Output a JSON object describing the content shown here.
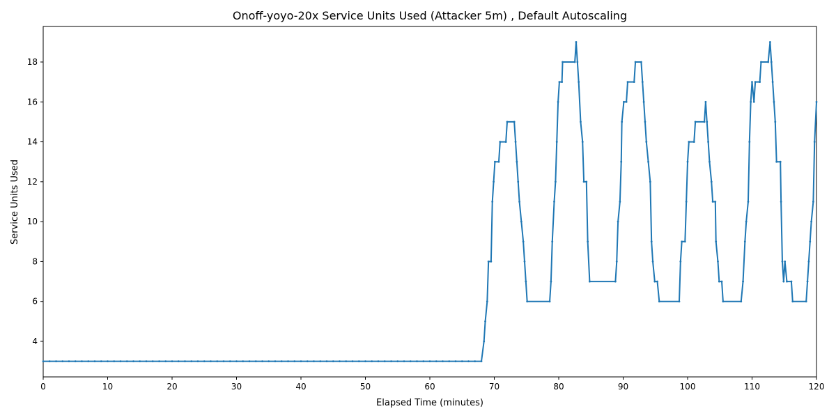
{
  "chart_data": {
    "type": "line",
    "title": "Onoff-yoyo-20x Service Units Used (Attacker 5m) , Default Autoscaling",
    "x_label": "Elapsed Time (minutes)",
    "y_label": "Service Units Used",
    "color": "#1f77b4",
    "xlim": [
      0,
      120
    ],
    "ylim": [
      2.22,
      19.78
    ],
    "xticks": [
      0,
      10,
      20,
      30,
      40,
      50,
      60,
      70,
      80,
      90,
      100,
      110,
      120
    ],
    "yticks": [
      4,
      6,
      8,
      10,
      12,
      14,
      16,
      18
    ],
    "x": [
      0,
      1,
      2,
      3,
      4,
      5,
      6,
      7,
      8,
      9,
      10,
      11,
      12,
      13,
      14,
      15,
      16,
      17,
      18,
      19,
      20,
      21,
      22,
      23,
      24,
      25,
      26,
      27,
      28,
      29,
      30,
      31,
      32,
      33,
      34,
      35,
      36,
      37,
      38,
      39,
      40,
      41,
      42,
      43,
      44,
      45,
      46,
      47,
      48,
      49,
      50,
      51,
      52,
      53,
      54,
      55,
      56,
      57,
      58,
      59,
      60,
      61,
      62,
      63,
      64,
      65,
      66,
      67,
      68,
      68.4,
      68.6,
      68.9,
      69.1,
      69.5,
      69.7,
      69.9,
      70.1,
      70.7,
      70.9,
      71.8,
      72.0,
      73.1,
      73.3,
      73.5,
      73.7,
      73.9,
      74.2,
      74.5,
      74.7,
      74.9,
      75.1,
      78.6,
      78.8,
      79.0,
      79.3,
      79.5,
      79.7,
      79.9,
      80.1,
      80.5,
      80.6,
      82.5,
      82.7,
      82.9,
      83.1,
      83.4,
      83.7,
      83.9,
      84.3,
      84.5,
      84.8,
      88.8,
      89.0,
      89.2,
      89.5,
      89.7,
      89.8,
      90.1,
      90.5,
      90.7,
      91.7,
      91.9,
      92.8,
      93.0,
      93.2,
      93.4,
      93.6,
      93.9,
      94.2,
      94.4,
      94.6,
      94.9,
      95.3,
      95.6,
      98.7,
      98.9,
      99.1,
      99.6,
      99.8,
      100.0,
      100.2,
      101.0,
      101.2,
      102.6,
      102.8,
      103.0,
      103.2,
      103.4,
      103.7,
      103.9,
      104.3,
      104.4,
      104.7,
      104.9,
      105.3,
      105.5,
      108.3,
      108.6,
      108.9,
      109.1,
      109.4,
      109.6,
      109.8,
      110.0,
      110.3,
      110.5,
      111.2,
      111.4,
      112.5,
      112.8,
      113.0,
      113.2,
      113.4,
      113.6,
      113.8,
      114.4,
      114.5,
      114.7,
      114.9,
      115.1,
      115.4,
      116.1,
      116.3,
      118.4,
      118.6,
      118.8,
      119.0,
      119.2,
      119.5,
      119.7,
      120.0
    ],
    "values": [
      3,
      3,
      3,
      3,
      3,
      3,
      3,
      3,
      3,
      3,
      3,
      3,
      3,
      3,
      3,
      3,
      3,
      3,
      3,
      3,
      3,
      3,
      3,
      3,
      3,
      3,
      3,
      3,
      3,
      3,
      3,
      3,
      3,
      3,
      3,
      3,
      3,
      3,
      3,
      3,
      3,
      3,
      3,
      3,
      3,
      3,
      3,
      3,
      3,
      3,
      3,
      3,
      3,
      3,
      3,
      3,
      3,
      3,
      3,
      3,
      3,
      3,
      3,
      3,
      3,
      3,
      3,
      3,
      3,
      4,
      5,
      6,
      8,
      8,
      11,
      12,
      13,
      13,
      14,
      14,
      15,
      15,
      14,
      13,
      12,
      11,
      10,
      9,
      8,
      7,
      6,
      6,
      7,
      9,
      11,
      12,
      14,
      16,
      17,
      17,
      18,
      18,
      19,
      18,
      17,
      15,
      14,
      12,
      12,
      9,
      7,
      7,
      8,
      10,
      11,
      13,
      15,
      16,
      16,
      17,
      17,
      18,
      18,
      17,
      16,
      15,
      14,
      13,
      12,
      9,
      8,
      7,
      7,
      6,
      6,
      8,
      9,
      9,
      11,
      13,
      14,
      14,
      15,
      15,
      16,
      15,
      14,
      13,
      12,
      11,
      11,
      9,
      8,
      7,
      7,
      6,
      6,
      7,
      9,
      10,
      11,
      14,
      16,
      17,
      16,
      17,
      17,
      18,
      18,
      19,
      18,
      17,
      16,
      15,
      13,
      13,
      11,
      8,
      7,
      8,
      7,
      7,
      6,
      6,
      7,
      8,
      9,
      10,
      11,
      14,
      16
    ]
  }
}
